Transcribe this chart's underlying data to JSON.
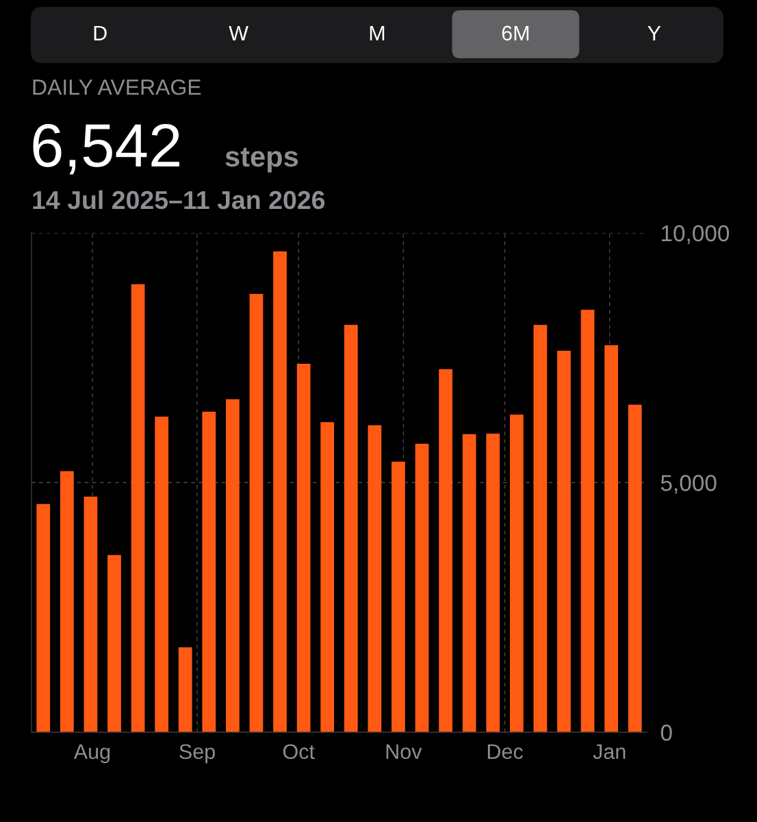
{
  "chart_data": {
    "type": "bar",
    "title": "DAILY AVERAGE",
    "subtitle": "14 Jul 2025–11 Jan 2026",
    "annotations": [
      "D",
      "W",
      "M",
      "6M",
      "Y",
      "6,542",
      "steps"
    ],
    "x": [
      "2025-07-17T12:00",
      "2025-07-24T12:00",
      "2025-07-31T12:00",
      "2025-08-07T12:00",
      "2025-08-14T12:00",
      "2025-08-21T12:00",
      "2025-08-28T12:00",
      "2025-09-04T12:00",
      "2025-09-11T12:00",
      "2025-09-18T12:00",
      "2025-09-25T12:00",
      "2025-10-02T12:00",
      "2025-10-09T12:00",
      "2025-10-16T12:00",
      "2025-10-23T12:00",
      "2025-10-30T12:00",
      "2025-11-06T12:00",
      "2025-11-13T12:00",
      "2025-11-20T12:00",
      "2025-11-27T12:00",
      "2025-12-04T12:00",
      "2025-12-11T12:00",
      "2025-12-18T12:00",
      "2025-12-25T12:00",
      "2026-01-01T12:00",
      "2026-01-08T12:00"
    ],
    "values": [
      4570,
      5230,
      4720,
      3550,
      8970,
      6320,
      1700,
      6420,
      6670,
      8780,
      9630,
      7380,
      6210,
      8160,
      6150,
      5420,
      5780,
      7270,
      5970,
      5980,
      6360,
      8160,
      7640,
      8460,
      7750,
      6560
    ],
    "color": "#ff5a14",
    "xlim": [
      "2025-07-14",
      "2026-01-12"
    ],
    "xticks": [
      {
        "value": "2025-08-01",
        "label": "Aug"
      },
      {
        "value": "2025-09-01",
        "label": "Sep"
      },
      {
        "value": "2025-10-01",
        "label": "Oct"
      },
      {
        "value": "2025-11-01",
        "label": "Nov"
      },
      {
        "value": "2025-12-01",
        "label": "Dec"
      },
      {
        "value": "2026-01-01",
        "label": "Jan"
      }
    ],
    "ylim": [
      0,
      10000
    ],
    "yticks": [
      0,
      {
        "value": 5000,
        "label": "5,000"
      },
      {
        "value": 10000,
        "label": "10,000"
      }
    ],
    "grid": true
  }
}
